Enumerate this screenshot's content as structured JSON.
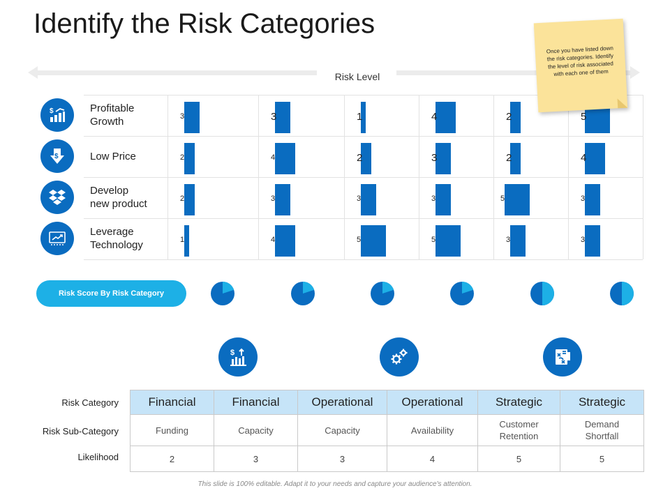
{
  "title": "Identify the Risk Categories",
  "risk_level_label": "Risk Level",
  "sticky_note": "Once you have listed down  the risk categories. Identify the level of risk associated with each one of them",
  "rows": [
    {
      "label": "Profitable\nGrowth",
      "icon": "growth-chart-icon",
      "values": [
        3,
        3,
        1,
        4,
        2,
        5
      ]
    },
    {
      "label": "Low Price",
      "icon": "dollar-down-arrow-icon",
      "values": [
        2,
        4,
        2,
        3,
        2,
        4
      ]
    },
    {
      "label": "Develop\nnew product",
      "icon": "dropbox-box-icon",
      "values": [
        2,
        3,
        3,
        3,
        5,
        3
      ]
    },
    {
      "label": "Leverage\nTechnology",
      "icon": "tech-monitor-icon",
      "values": [
        1,
        4,
        5,
        5,
        3,
        3
      ]
    }
  ],
  "risk_score_label": "Risk Score By Risk Category",
  "pie_fractions": [
    0.2,
    0.2,
    0.2,
    0.2,
    0.5,
    0.5
  ],
  "colors": {
    "primary_blue": "#0a6cc0",
    "light_blue": "#1db0e6",
    "header_blue": "#c6e4f8",
    "sticky_yellow": "#fbe39a"
  },
  "category_icons": [
    "dollar-bar-chart-icon",
    "gears-icon",
    "strategy-board-icon"
  ],
  "table": {
    "side_labels": {
      "category": "Risk Category",
      "sub_category": "Risk Sub-Category",
      "likelihood": "Likelihood"
    },
    "categories": [
      "Financial",
      "Financial",
      "Operational",
      "Operational",
      "Strategic",
      "Strategic"
    ],
    "sub_categories": [
      "Funding",
      "Capacity",
      "Capacity",
      "Availability",
      "Customer\nRetention",
      "Demand\nShortfall"
    ],
    "likelihood": [
      "2",
      "3",
      "3",
      "4",
      "5",
      "5"
    ]
  },
  "footer": "This slide is 100% editable. Adapt it to your needs and capture your audience's attention."
}
